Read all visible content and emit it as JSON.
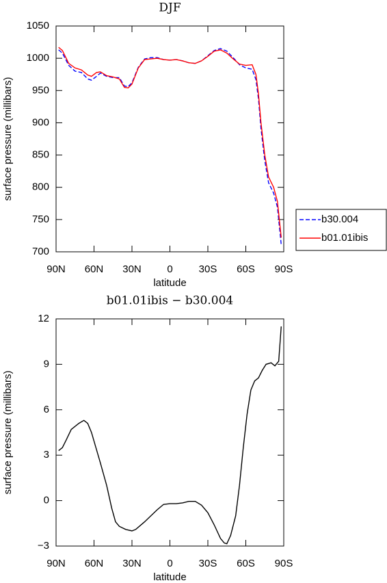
{
  "chart_data": [
    {
      "type": "line",
      "title": "DJF",
      "x_label": "latitude",
      "y_label": "surface pressure (millibars)",
      "x": [
        88,
        85,
        80,
        75,
        70,
        65,
        62,
        58,
        55,
        50,
        45,
        40,
        36,
        33,
        30,
        25,
        20,
        15,
        10,
        5,
        0,
        -5,
        -10,
        -15,
        -20,
        -25,
        -30,
        -35,
        -40,
        -45,
        -50,
        -55,
        -60,
        -65,
        -68,
        -70,
        -72,
        -75,
        -78,
        -82,
        -85,
        -88
      ],
      "series": [
        {
          "name": "b30.004",
          "color": "#0000ff",
          "dash": "dashed",
          "values": [
            1013,
            1008,
            989,
            980,
            978,
            968,
            966,
            972,
            977,
            972,
            970,
            970,
            957,
            956,
            962,
            986,
            999,
            1001,
            1001,
            998,
            997,
            998,
            996,
            993,
            992,
            996,
            1004,
            1012,
            1015,
            1011,
            1001,
            990,
            985,
            983,
            967,
            937,
            891,
            841,
            807,
            791,
            769,
            711
          ]
        },
        {
          "name": "b01.01ibis",
          "color": "#ff0000",
          "dash": "solid",
          "values": [
            1017,
            1012,
            992,
            985,
            982,
            974,
            972,
            978,
            979,
            973,
            971,
            968,
            955,
            954,
            960,
            985,
            998,
            999,
            1000,
            998,
            997,
            998,
            996,
            993,
            992,
            996,
            1003,
            1011,
            1013,
            1008,
            999,
            991,
            989,
            990,
            975,
            945,
            900,
            850,
            816,
            800,
            778,
            722
          ]
        }
      ],
      "xlim": [
        90,
        -90
      ],
      "xticks": [
        {
          "value": 90,
          "label": "90N"
        },
        {
          "value": 60,
          "label": "60N"
        },
        {
          "value": 30,
          "label": "30N"
        },
        0,
        {
          "value": -30,
          "label": "30S"
        },
        {
          "value": -60,
          "label": "60S"
        },
        {
          "value": -90,
          "label": "90S"
        }
      ],
      "ylim": [
        700,
        1050
      ],
      "yticks": [
        700,
        750,
        800,
        850,
        900,
        950,
        1000,
        1050
      ]
    },
    {
      "type": "line",
      "title": "b01.01ibis − b30.004",
      "x_label": "latitude",
      "y_label": "surface pressure (millibars)",
      "x": [
        88,
        85,
        82,
        78,
        72,
        68,
        65,
        62,
        55,
        50,
        46,
        43,
        40,
        35,
        30,
        27,
        20,
        10,
        5,
        0,
        -5,
        -10,
        -15,
        -20,
        -25,
        -30,
        -35,
        -40,
        -43,
        -45,
        -48,
        -52,
        -55,
        -58,
        -61,
        -64,
        -67,
        -70,
        -73,
        -76,
        -80,
        -83,
        -86,
        -88
      ],
      "series": [
        {
          "color": "#000000",
          "dash": "solid",
          "values": [
            3.3,
            3.5,
            4.0,
            4.7,
            5.1,
            5.3,
            5.1,
            4.5,
            2.5,
            1.0,
            -0.5,
            -1.4,
            -1.7,
            -1.9,
            -2.0,
            -1.9,
            -1.4,
            -0.6,
            -0.25,
            -0.2,
            -0.2,
            -0.15,
            -0.05,
            -0.05,
            -0.3,
            -0.8,
            -1.6,
            -2.5,
            -2.8,
            -2.85,
            -2.3,
            -1.0,
            1.0,
            3.5,
            5.7,
            7.3,
            7.9,
            8.1,
            8.6,
            9.0,
            9.1,
            8.9,
            9.2,
            11.5
          ]
        }
      ],
      "xlim": [
        90,
        -90
      ],
      "xticks": [
        {
          "value": 90,
          "label": "90N"
        },
        {
          "value": 60,
          "label": "60N"
        },
        {
          "value": 30,
          "label": "30N"
        },
        0,
        {
          "value": -30,
          "label": "30S"
        },
        {
          "value": -60,
          "label": "60S"
        },
        {
          "value": -90,
          "label": "90S"
        }
      ],
      "ylim": [
        -3,
        12
      ],
      "yticks": [
        {
          "value": -3,
          "label": "−3"
        },
        0,
        3,
        6,
        9,
        12
      ]
    }
  ]
}
